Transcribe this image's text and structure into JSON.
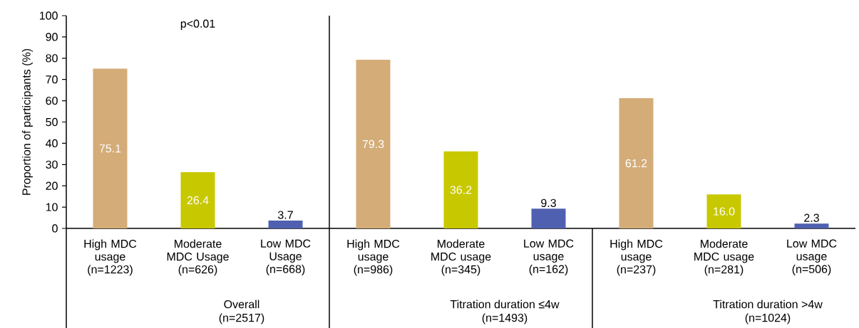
{
  "chart_data": {
    "type": "bar",
    "ylabel": "Proportion of participants (%)",
    "categories": [
      "High MDC usage (n=1223)",
      "Moderate MDC Usage (n=626)",
      "Low MDC Usage (n=668)",
      "High MDC usage (n=986)",
      "Moderate MDC usage (n=345)",
      "Low MDC usage (n=162)",
      "High MDC usage (n=237)",
      "Moderate MDC usage (n=281)",
      "Low MDC usage (n=506)"
    ],
    "values": [
      75.1,
      26.4,
      3.7,
      79.3,
      36.2,
      9.3,
      61.2,
      16.0,
      2.3
    ],
    "value_labels": [
      "75.1",
      "26.4",
      "3.7",
      "79.3",
      "36.2",
      "9.3",
      "61.2",
      "16.0",
      "2.3"
    ],
    "colors": [
      "#d4ac78",
      "#c8c800",
      "#5060b0",
      "#d4ac78",
      "#c8c800",
      "#5060b0",
      "#d4ac78",
      "#c8c800",
      "#5060b0"
    ],
    "ylim": [
      0,
      100
    ],
    "yticks": [
      0,
      10,
      20,
      30,
      40,
      50,
      60,
      70,
      80,
      90,
      100
    ],
    "grid": false,
    "annotations": [
      "p<0.01",
      "Overall",
      "(n=2517)",
      "Titration duration ≤4w",
      "(n=1493)",
      "Titration duration >4w",
      "(n=1024)"
    ]
  }
}
